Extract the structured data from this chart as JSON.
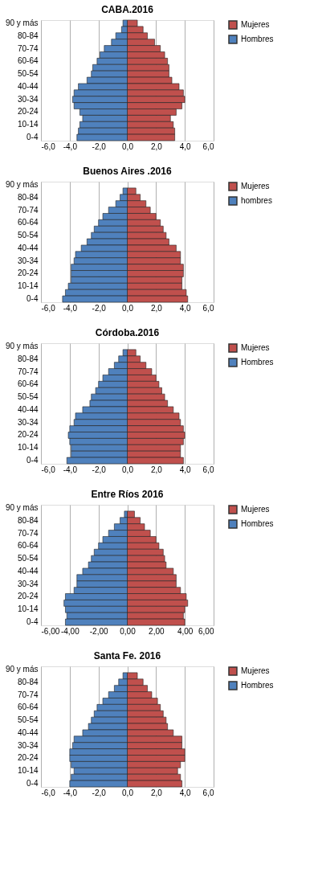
{
  "chart_data": [
    {
      "type": "bar",
      "title": "CABA.2016",
      "orientation": "horizontal",
      "stacked": true,
      "grid": "x",
      "legend": "right",
      "categories": [
        "90 y más",
        null,
        "80-84",
        null,
        "70-74",
        null,
        "60-64",
        null,
        "50-54",
        null,
        "40-44",
        null,
        "30-34",
        null,
        "20-24",
        null,
        "10-14",
        null,
        "0-4"
      ],
      "xlim": [
        -6,
        6
      ],
      "xticks": [
        {
          "value": -6,
          "label": "-6,0"
        },
        {
          "value": -4,
          "label": "-4,0"
        },
        {
          "value": -2,
          "label": "-2,0"
        },
        {
          "value": 0,
          "label": "0,0"
        },
        {
          "value": 2,
          "label": "2,0"
        },
        {
          "value": 4,
          "label": "4,0"
        },
        {
          "value": 6,
          "label": "6,0"
        }
      ],
      "series": [
        {
          "name": "Mujeres",
          "color": "#c0504d",
          "values": [
            0.7,
            1.1,
            1.4,
            1.9,
            2.3,
            2.6,
            2.8,
            2.9,
            2.9,
            3.1,
            3.6,
            3.9,
            4.0,
            3.8,
            3.4,
            3.0,
            3.2,
            3.3,
            3.3
          ]
        },
        {
          "name": "Hombres",
          "color": "#4f81bd",
          "values": [
            -0.3,
            -0.4,
            -0.8,
            -1.1,
            -1.6,
            -1.9,
            -2.1,
            -2.4,
            -2.5,
            -2.8,
            -3.4,
            -3.7,
            -3.8,
            -3.7,
            -3.3,
            -3.1,
            -3.3,
            -3.4,
            -3.5
          ]
        }
      ]
    },
    {
      "type": "bar",
      "title": "Buenos Aires .2016",
      "orientation": "horizontal",
      "stacked": true,
      "grid": "x",
      "legend": "right",
      "categories": [
        "90 y más",
        null,
        "80-84",
        null,
        "70-74",
        null,
        "60-64",
        null,
        "50-54",
        null,
        "40-44",
        null,
        "30-34",
        null,
        "20-24",
        null,
        "10-14",
        null,
        "0-4"
      ],
      "xlim": [
        -6,
        6
      ],
      "xticks": [
        {
          "value": -6,
          "label": "-6,0"
        },
        {
          "value": -4,
          "label": "-4,0"
        },
        {
          "value": -2,
          "label": "-2,0"
        },
        {
          "value": 0,
          "label": "0,0"
        },
        {
          "value": 2,
          "label": "2,0"
        },
        {
          "value": 4,
          "label": "4,0"
        },
        {
          "value": 6,
          "label": "6,0"
        }
      ],
      "series": [
        {
          "name": "Mujeres",
          "color": "#c0504d",
          "values": [
            null,
            0.6,
            0.9,
            1.3,
            1.6,
            2.0,
            2.3,
            2.5,
            2.7,
            2.9,
            3.4,
            3.7,
            3.7,
            3.9,
            3.9,
            3.8,
            3.8,
            4.1,
            4.2
          ]
        },
        {
          "name": "hombres",
          "color": "#4f81bd",
          "values": [
            null,
            -0.3,
            -0.5,
            -0.8,
            -1.3,
            -1.7,
            -2.0,
            -2.3,
            -2.5,
            -2.8,
            -3.2,
            -3.6,
            -3.7,
            -3.9,
            -3.9,
            -3.9,
            -4.1,
            -4.3,
            -4.5
          ]
        }
      ]
    },
    {
      "type": "bar",
      "title": "Córdoba.2016",
      "orientation": "horizontal",
      "stacked": true,
      "grid": "x",
      "legend": "right",
      "categories": [
        "90 y más",
        null,
        "80-84",
        null,
        "70-74",
        null,
        "60-64",
        null,
        "50-54",
        null,
        "40-44",
        null,
        "30-34",
        null,
        "20-24",
        null,
        "10-14",
        null,
        "0-4"
      ],
      "xlim": [
        -6,
        6
      ],
      "xticks": [
        {
          "value": -6,
          "label": "-6,0"
        },
        {
          "value": -4,
          "label": "-4,0"
        },
        {
          "value": -2,
          "label": "-2,0"
        },
        {
          "value": 0,
          "label": "0,0"
        },
        {
          "value": 2,
          "label": "2,0"
        },
        {
          "value": 4,
          "label": "4,0"
        },
        {
          "value": 6,
          "label": "6,0"
        }
      ],
      "series": [
        {
          "name": "Mujeres",
          "color": "#c0504d",
          "values": [
            null,
            0.6,
            0.9,
            1.3,
            1.7,
            2.0,
            2.2,
            2.4,
            2.6,
            2.8,
            3.2,
            3.6,
            3.7,
            3.9,
            4.0,
            3.9,
            3.7,
            3.7,
            3.9
          ]
        },
        {
          "name": "Hombres",
          "color": "#4f81bd",
          "values": [
            null,
            -0.3,
            -0.6,
            -0.9,
            -1.3,
            -1.7,
            -2.0,
            -2.2,
            -2.5,
            -2.6,
            -3.1,
            -3.6,
            -3.7,
            -4.0,
            -4.1,
            -4.0,
            -3.9,
            -3.9,
            -4.2
          ]
        }
      ]
    },
    {
      "type": "bar",
      "title": "Entre Ríos 2016",
      "orientation": "horizontal",
      "stacked": true,
      "grid": "x",
      "legend": "right",
      "categories": [
        "90 y más",
        null,
        "80-84",
        null,
        "70-74",
        null,
        "60-64",
        null,
        "50-54",
        null,
        "40-44",
        null,
        "30-34",
        null,
        "20-24",
        null,
        "10-14",
        null,
        "0-4"
      ],
      "xlim": [
        -6,
        6
      ],
      "xticks": [
        {
          "value": -6,
          "label": "-6,00"
        },
        {
          "value": -4,
          "label": "-4,00"
        },
        {
          "value": -2,
          "label": "-2,00"
        },
        {
          "value": 0,
          "label": "0,00"
        },
        {
          "value": 2,
          "label": "2,00"
        },
        {
          "value": 4,
          "label": "4,00"
        },
        {
          "value": 6,
          "label": "6,00"
        }
      ],
      "series": [
        {
          "name": "Mujeres",
          "color": "#c0504d",
          "values": [
            null,
            0.5,
            0.9,
            1.2,
            1.6,
            2.0,
            2.2,
            2.5,
            2.6,
            2.7,
            3.2,
            3.4,
            3.4,
            3.7,
            4.1,
            4.2,
            4.0,
            3.9,
            4.0
          ]
        },
        {
          "name": "Hombres",
          "color": "#4f81bd",
          "values": [
            null,
            -0.2,
            -0.5,
            -0.9,
            -1.3,
            -1.7,
            -2.0,
            -2.3,
            -2.5,
            -2.7,
            -3.1,
            -3.5,
            -3.5,
            -3.7,
            -4.3,
            -4.4,
            -4.3,
            -4.2,
            -4.3
          ]
        }
      ]
    },
    {
      "type": "bar",
      "title": "Santa Fe. 2016",
      "orientation": "horizontal",
      "stacked": true,
      "grid": "x",
      "legend": "right",
      "categories": [
        "90 y más",
        null,
        "80-84",
        null,
        "70-74",
        null,
        "60-64",
        null,
        "50-54",
        null,
        "40-44",
        null,
        "30-34",
        null,
        "20-24",
        null,
        "10-14",
        null,
        "0-4"
      ],
      "xlim": [
        -6,
        6
      ],
      "xticks": [
        {
          "value": -6,
          "label": "-6,0"
        },
        {
          "value": -4,
          "label": "-4,0"
        },
        {
          "value": -2,
          "label": "-2,0"
        },
        {
          "value": 0,
          "label": "0,0"
        },
        {
          "value": 2,
          "label": "2,0"
        },
        {
          "value": 4,
          "label": "4,0"
        },
        {
          "value": 6,
          "label": "6,0"
        }
      ],
      "series": [
        {
          "name": "Mujeres",
          "color": "#c0504d",
          "values": [
            null,
            0.7,
            1.1,
            1.4,
            1.7,
            2.1,
            2.3,
            2.5,
            2.7,
            2.8,
            3.2,
            3.8,
            3.8,
            4.0,
            4.0,
            3.7,
            3.5,
            3.7,
            3.8
          ]
        },
        {
          "name": "Hombres",
          "color": "#4f81bd",
          "values": [
            null,
            -0.3,
            -0.6,
            -0.9,
            -1.3,
            -1.7,
            -2.1,
            -2.3,
            -2.5,
            -2.7,
            -3.1,
            -3.7,
            -3.8,
            -4.0,
            -4.0,
            -3.9,
            -3.7,
            -3.9,
            -4.0
          ]
        }
      ]
    }
  ]
}
